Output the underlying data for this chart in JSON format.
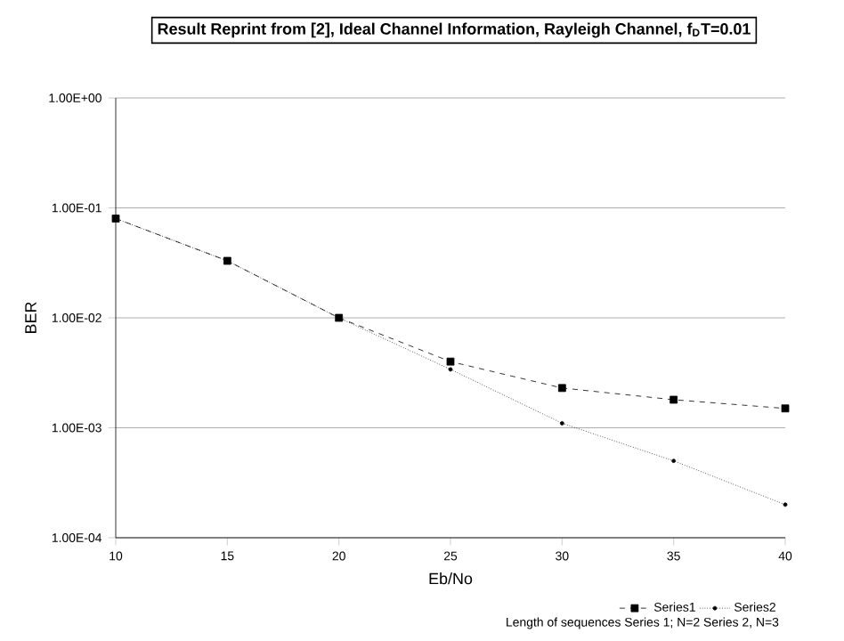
{
  "chart_data": {
    "type": "line",
    "title": "Result Reprint from [2], Ideal Channel Information, Rayleigh Channel, f$_{D}$T=0.01",
    "xlabel": "Eb/No",
    "ylabel": "BER",
    "log": "y",
    "grid": "y",
    "legend": "bottom right",
    "x": [
      10,
      15,
      20,
      25,
      30,
      35,
      40
    ],
    "xlim": [
      10,
      40
    ],
    "xticks": [
      10,
      15,
      20,
      25,
      30,
      35,
      40
    ],
    "ylim": [
      0.0001,
      1
    ],
    "yticks": [
      {
        "value": 0.0001,
        "label": "1.00E-04"
      },
      {
        "value": 0.001,
        "label": "1.00E-03"
      },
      {
        "value": 0.01,
        "label": "1.00E-02"
      },
      {
        "value": 0.1,
        "label": "1.00E-01"
      },
      {
        "value": 1,
        "label": "1.00E+00"
      }
    ],
    "series": [
      {
        "name": "Series1",
        "color": "#000000",
        "marker": "square",
        "line_style": "dashed",
        "values": [
          0.08,
          0.033,
          0.01,
          0.004,
          0.0023,
          0.0018,
          0.0015
        ]
      },
      {
        "name": "Series2",
        "color": "#000000",
        "marker": "circle",
        "line_style": "dotted",
        "values": [
          0.08,
          0.033,
          0.01,
          0.0034,
          0.0011,
          0.0005,
          0.0002
        ]
      }
    ],
    "annotations": [
      "Length of sequences Series 1; N=2 Series 2, N=3"
    ]
  }
}
